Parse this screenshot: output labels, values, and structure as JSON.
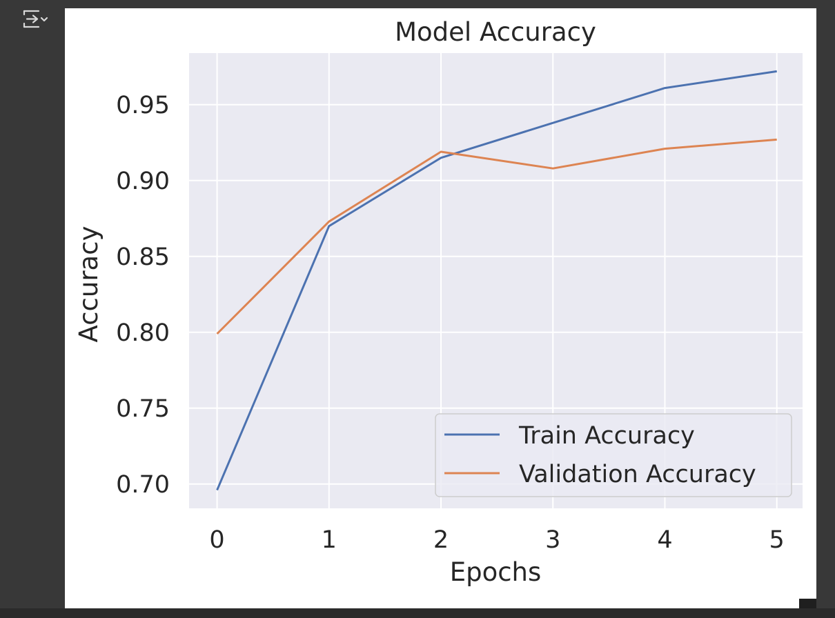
{
  "output_toggle": {
    "icon": "output-collapse-icon"
  },
  "colors": {
    "page_background": "#383838",
    "figure_background": "#ffffff",
    "plot_background": "#eaeaf2",
    "grid": "#ffffff",
    "text": "#262626",
    "train": "#4c72b0",
    "validation": "#dd8452",
    "icon": "#d9d9d9"
  },
  "chart_data": {
    "type": "line",
    "title": "Model Accuracy",
    "xlabel": "Epochs",
    "ylabel": "Accuracy",
    "x": [
      0,
      1,
      2,
      3,
      4,
      5
    ],
    "x_ticks": [
      "0",
      "1",
      "2",
      "3",
      "4",
      "5"
    ],
    "y_ticks": [
      "0.70",
      "0.75",
      "0.80",
      "0.85",
      "0.90",
      "0.95"
    ],
    "xlim": [
      -0.25,
      5.23
    ],
    "ylim": [
      0.684,
      0.984
    ],
    "grid": true,
    "legend_position": "lower-right",
    "series": [
      {
        "name": "Train Accuracy",
        "color": "#4c72b0",
        "values": [
          0.696,
          0.87,
          0.915,
          0.938,
          0.961,
          0.972
        ]
      },
      {
        "name": "Validation Accuracy",
        "color": "#dd8452",
        "values": [
          0.799,
          0.873,
          0.919,
          0.908,
          0.921,
          0.927
        ]
      }
    ]
  }
}
